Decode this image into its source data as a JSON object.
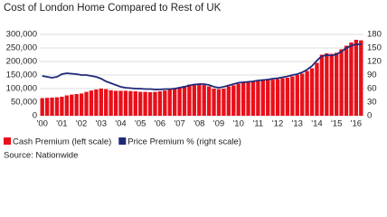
{
  "chart_data": {
    "type": "bar-line",
    "title": "Cost of London Home Compared to Rest of UK",
    "source": "Source: Nationwide",
    "categories": [
      "'00",
      null,
      null,
      null,
      "'01",
      null,
      null,
      null,
      "'02",
      null,
      null,
      null,
      "'03",
      null,
      null,
      null,
      "'04",
      null,
      null,
      null,
      "'05",
      null,
      null,
      null,
      "'06",
      null,
      null,
      null,
      "'07",
      null,
      null,
      null,
      "'08",
      null,
      null,
      null,
      "'09",
      null,
      null,
      null,
      "'10",
      null,
      null,
      null,
      "'11",
      null,
      null,
      null,
      "'12",
      null,
      null,
      null,
      "'13",
      null,
      null,
      null,
      "'14",
      null,
      null,
      null,
      "'15",
      null,
      null,
      null,
      "'16",
      null
    ],
    "series": [
      {
        "name": "Cash Premium (left scale)",
        "color": "#e8101a",
        "values": [
          65000,
          66000,
          67000,
          68000,
          70000,
          75000,
          78000,
          80000,
          82000,
          88000,
          93000,
          97000,
          100000,
          98000,
          94000,
          92000,
          92000,
          92000,
          91000,
          90000,
          88000,
          88000,
          87000,
          88000,
          90000,
          93000,
          97000,
          100000,
          105000,
          110000,
          115000,
          117000,
          118000,
          113000,
          108000,
          100000,
          98000,
          100000,
          108000,
          112000,
          118000,
          122000,
          125000,
          125000,
          127000,
          130000,
          132000,
          133000,
          135000,
          138000,
          140000,
          145000,
          150000,
          155000,
          165000,
          175000,
          195000,
          225000,
          230000,
          228000,
          232000,
          245000,
          258000,
          270000,
          280000,
          278000
        ]
      },
      {
        "name": "Price Premium % (right scale)",
        "color": "#1f2a7a",
        "axis": "y2",
        "values": [
          88,
          86,
          84,
          86,
          92,
          94,
          93,
          92,
          90,
          90,
          88,
          86,
          82,
          76,
          72,
          68,
          64,
          62,
          61,
          60,
          60,
          59,
          59,
          58,
          58,
          59,
          59,
          60,
          62,
          64,
          67,
          69,
          70,
          70,
          68,
          64,
          62,
          64,
          67,
          70,
          73,
          74,
          75,
          76,
          78,
          79,
          80,
          82,
          83,
          85,
          87,
          90,
          92,
          96,
          102,
          110,
          122,
          132,
          134,
          133,
          136,
          142,
          150,
          155,
          158,
          158
        ]
      }
    ],
    "ylim": [
      0,
      300000
    ],
    "yticks": [
      0,
      {
        "value": 50000,
        "label": "50,000"
      },
      {
        "value": 100000,
        "label": "100,000"
      },
      {
        "value": 150000,
        "label": "150,000"
      },
      {
        "value": 200000,
        "label": "200,000"
      },
      {
        "value": 250000,
        "label": "250,000"
      },
      {
        "value": 300000,
        "label": "300,000"
      }
    ],
    "y2lim": [
      0,
      180
    ],
    "y2ticks": [
      0,
      30,
      60,
      90,
      120,
      150,
      180
    ],
    "grid": true
  }
}
